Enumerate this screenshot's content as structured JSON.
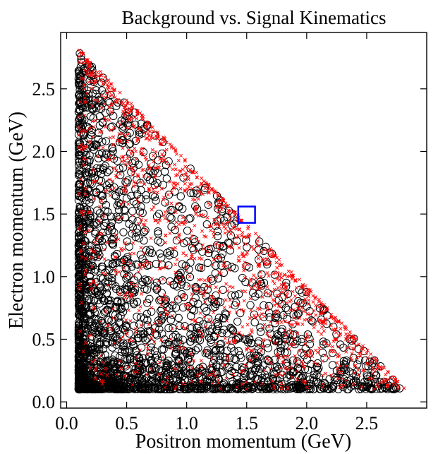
{
  "chart_data": {
    "type": "scatter",
    "title": "Background vs. Signal Kinematics",
    "xlabel": "Positron momentum (GeV)",
    "ylabel": "Electron momentum (GeV)",
    "xlim": [
      -0.05,
      3.0
    ],
    "ylim": [
      -0.05,
      2.95
    ],
    "xticks": [
      "0.0",
      "0.5",
      "1.0",
      "1.5",
      "2.0",
      "2.5"
    ],
    "yticks": [
      "0.0",
      "0.5",
      "1.0",
      "1.5",
      "2.0",
      "2.5"
    ],
    "grid": false,
    "legend": "none",
    "series": [
      {
        "marker": "open-circle",
        "color": "#000000",
        "count": 2600,
        "region": "x >= 0.1, y >= 0.1, x + y <= 2.9",
        "density": "concentrated near the x and y axes, sparse toward the diagonal edge"
      },
      {
        "marker": "cross",
        "color": "#ff0000",
        "count": 1400,
        "region": "x >= 0.1, y >= 0.1, x + y <= 2.95",
        "density": "concentrated along the diagonal edge x + y ≈ 2.9"
      }
    ],
    "annotations": [
      {
        "type": "square",
        "color": "#0000ff",
        "x": [
          1.43,
          1.57
        ],
        "y": [
          1.43,
          1.56
        ]
      }
    ]
  }
}
